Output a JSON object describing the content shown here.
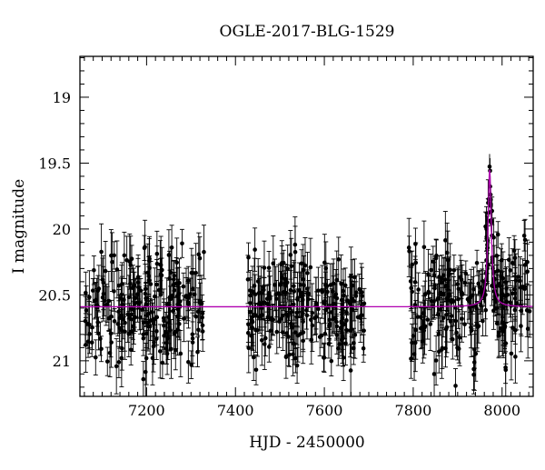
{
  "chart_data": {
    "type": "scatter",
    "title": "OGLE-2017-BLG-1529",
    "xlabel": "HJD - 2450000",
    "ylabel": "I magnitude",
    "xlim": [
      7050,
      8070
    ],
    "ylim": [
      21.27,
      18.69
    ],
    "y_inverted": true,
    "x_ticks": [
      7200,
      7400,
      7600,
      7800,
      8000
    ],
    "y_ticks": [
      19,
      19.5,
      20,
      20.5,
      21
    ],
    "x_tick_labels": [
      "7200",
      "7400",
      "7600",
      "7800",
      "8000"
    ],
    "y_tick_labels": [
      "19",
      "19.5",
      "20",
      "20.5",
      "21"
    ],
    "grid": false,
    "colors": {
      "data": "#000000",
      "model": "#b000b0"
    },
    "observing_seasons": [
      {
        "x_start": 7062,
        "x_end": 7330,
        "baseline_mag": 20.6,
        "scatter_mag": 0.35,
        "error_mag": 0.15
      },
      {
        "x_start": 7428,
        "x_end": 7690,
        "baseline_mag": 20.6,
        "scatter_mag": 0.35,
        "error_mag": 0.15
      },
      {
        "x_start": 7790,
        "x_end": 8065,
        "baseline_mag": 20.6,
        "scatter_mag": 0.35,
        "error_mag": 0.15
      }
    ],
    "model": {
      "baseline_mag": 20.59,
      "peak_x": 7972,
      "peak_mag": 19.55,
      "time_scale_days": 4.5
    }
  }
}
